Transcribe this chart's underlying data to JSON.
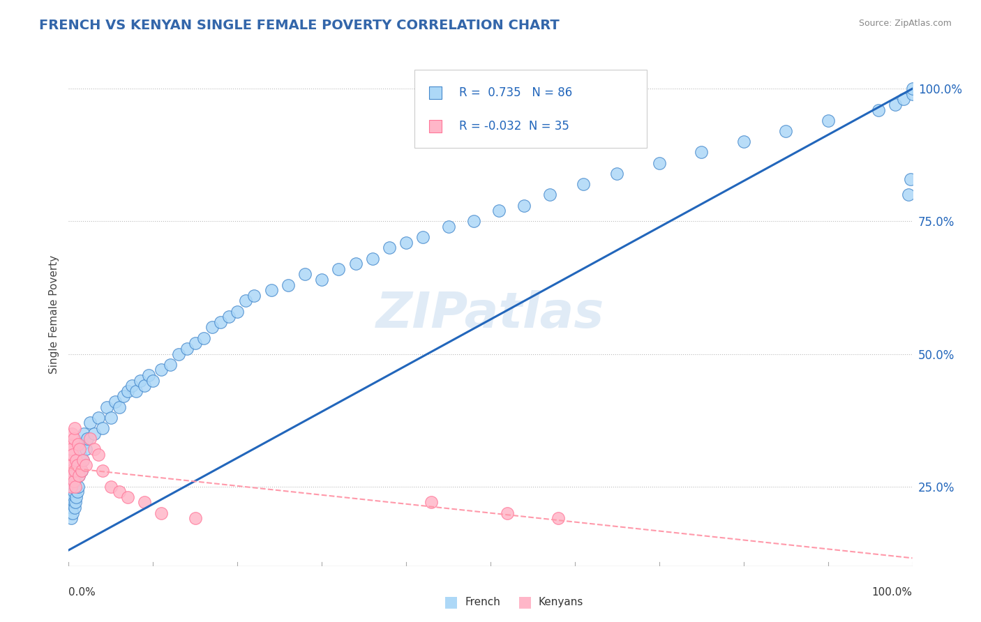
{
  "title": "FRENCH VS KENYAN SINGLE FEMALE POVERTY CORRELATION CHART",
  "source": "Source: ZipAtlas.com",
  "ylabel": "Single Female Poverty",
  "french_R": 0.735,
  "french_N": 86,
  "kenyan_R": -0.032,
  "kenyan_N": 35,
  "french_fill_color": "#ADD8F7",
  "french_edge_color": "#4488CC",
  "kenyan_fill_color": "#FFB6C8",
  "kenyan_edge_color": "#FF7799",
  "french_line_color": "#2266BB",
  "kenyan_line_color": "#FF99AA",
  "background_color": "#FFFFFF",
  "watermark": "ZIPatlas",
  "title_color": "#3366AA",
  "source_color": "#888888",
  "axis_label_color": "#2266BB",
  "french_x": [
    0.001,
    0.002,
    0.003,
    0.003,
    0.004,
    0.004,
    0.005,
    0.005,
    0.006,
    0.006,
    0.007,
    0.007,
    0.008,
    0.008,
    0.009,
    0.009,
    0.01,
    0.01,
    0.011,
    0.011,
    0.012,
    0.013,
    0.014,
    0.015,
    0.016,
    0.017,
    0.018,
    0.02,
    0.022,
    0.025,
    0.03,
    0.035,
    0.04,
    0.045,
    0.05,
    0.055,
    0.06,
    0.065,
    0.07,
    0.075,
    0.08,
    0.085,
    0.09,
    0.095,
    0.1,
    0.11,
    0.12,
    0.13,
    0.14,
    0.15,
    0.16,
    0.17,
    0.18,
    0.19,
    0.2,
    0.21,
    0.22,
    0.24,
    0.26,
    0.28,
    0.3,
    0.32,
    0.34,
    0.36,
    0.38,
    0.4,
    0.42,
    0.45,
    0.48,
    0.51,
    0.54,
    0.57,
    0.61,
    0.65,
    0.7,
    0.75,
    0.8,
    0.85,
    0.9,
    0.96,
    0.98,
    0.99,
    0.995,
    0.998,
    1.0,
    1.0
  ],
  "french_y": [
    0.2,
    0.22,
    0.19,
    0.24,
    0.21,
    0.23,
    0.2,
    0.25,
    0.22,
    0.24,
    0.21,
    0.26,
    0.22,
    0.27,
    0.23,
    0.28,
    0.24,
    0.29,
    0.25,
    0.3,
    0.27,
    0.29,
    0.31,
    0.28,
    0.33,
    0.3,
    0.35,
    0.32,
    0.34,
    0.37,
    0.35,
    0.38,
    0.36,
    0.4,
    0.38,
    0.41,
    0.4,
    0.42,
    0.43,
    0.44,
    0.43,
    0.45,
    0.44,
    0.46,
    0.45,
    0.47,
    0.48,
    0.5,
    0.51,
    0.52,
    0.53,
    0.55,
    0.56,
    0.57,
    0.58,
    0.6,
    0.61,
    0.62,
    0.63,
    0.65,
    0.64,
    0.66,
    0.67,
    0.68,
    0.7,
    0.71,
    0.72,
    0.74,
    0.75,
    0.77,
    0.78,
    0.8,
    0.82,
    0.84,
    0.86,
    0.88,
    0.9,
    0.92,
    0.94,
    0.96,
    0.97,
    0.98,
    0.8,
    0.83,
    0.99,
    1.0
  ],
  "kenyan_x": [
    0.001,
    0.002,
    0.002,
    0.003,
    0.003,
    0.004,
    0.004,
    0.005,
    0.005,
    0.006,
    0.006,
    0.007,
    0.007,
    0.008,
    0.009,
    0.01,
    0.011,
    0.012,
    0.013,
    0.015,
    0.017,
    0.02,
    0.025,
    0.03,
    0.035,
    0.04,
    0.05,
    0.06,
    0.07,
    0.09,
    0.11,
    0.15,
    0.43,
    0.52,
    0.58
  ],
  "kenyan_y": [
    0.3,
    0.28,
    0.33,
    0.25,
    0.32,
    0.29,
    0.35,
    0.27,
    0.31,
    0.26,
    0.34,
    0.28,
    0.36,
    0.25,
    0.3,
    0.29,
    0.33,
    0.27,
    0.32,
    0.28,
    0.3,
    0.29,
    0.34,
    0.32,
    0.31,
    0.28,
    0.25,
    0.24,
    0.23,
    0.22,
    0.2,
    0.19,
    0.22,
    0.2,
    0.19
  ],
  "french_line_x0": 0.0,
  "french_line_x1": 1.0,
  "french_line_y0": 0.13,
  "french_line_y1": 1.0,
  "kenyan_line_x0": 0.0,
  "kenyan_line_x1": 1.0,
  "kenyan_line_y0": 0.285,
  "kenyan_line_y1": 0.115,
  "xlim": [
    0.0,
    1.0
  ],
  "ylim": [
    0.1,
    1.05
  ],
  "yticks": [
    0.25,
    0.5,
    0.75,
    1.0
  ],
  "ytick_labels": [
    "25.0%",
    "50.0%",
    "75.0%",
    "100.0%"
  ]
}
